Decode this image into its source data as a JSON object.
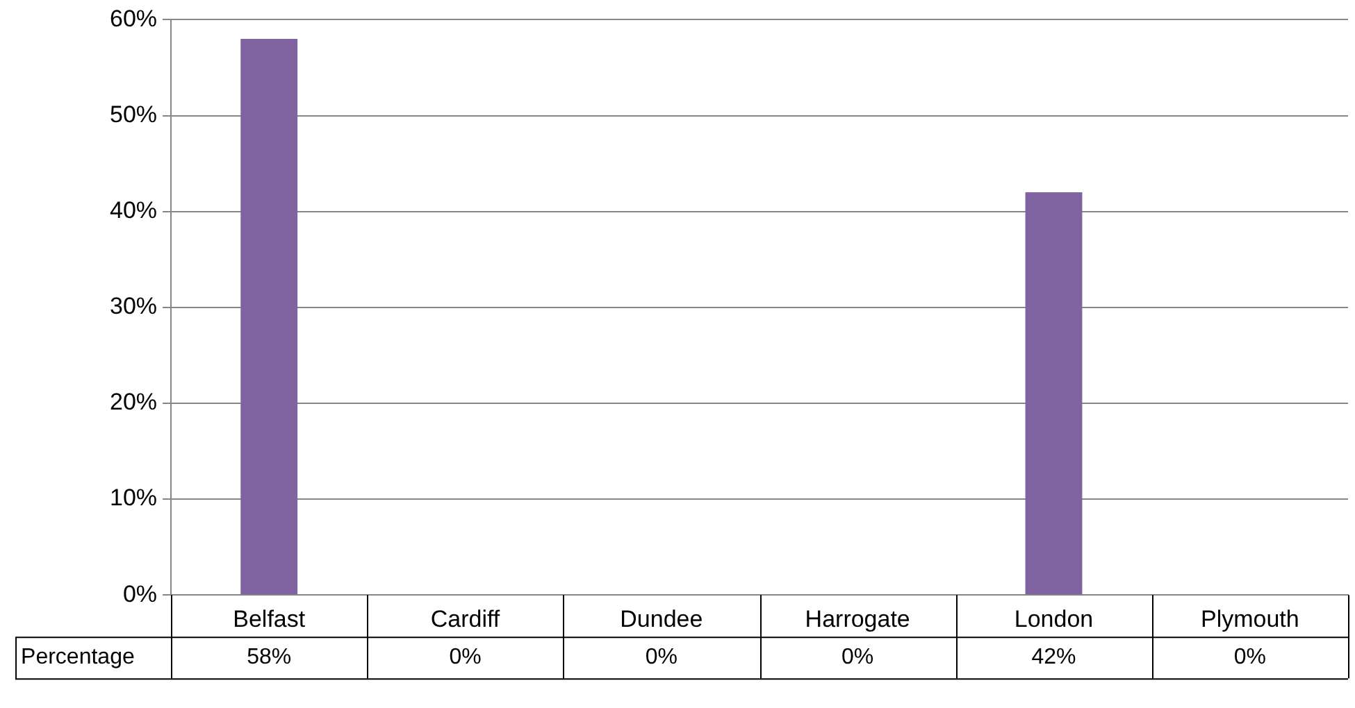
{
  "chart_data": {
    "type": "bar",
    "categories": [
      "Belfast",
      "Cardiff",
      "Dundee",
      "Harrogate",
      "London",
      "Plymouth"
    ],
    "series": [
      {
        "name": "Percentage",
        "color": "#8064a2",
        "values": [
          58,
          0,
          0,
          0,
          42,
          0
        ],
        "value_labels": [
          "58%",
          "0%",
          "0%",
          "0%",
          "42%",
          "0%"
        ]
      }
    ],
    "ylim": [
      0,
      60
    ],
    "yticks": [
      {
        "value": 0,
        "label": "0%"
      },
      {
        "value": 10,
        "label": "10%"
      },
      {
        "value": 20,
        "label": "20%"
      },
      {
        "value": 30,
        "label": "30%"
      },
      {
        "value": 40,
        "label": "40%"
      },
      {
        "value": 50,
        "label": "50%"
      },
      {
        "value": 60,
        "label": "60%"
      }
    ],
    "grid": "y"
  }
}
